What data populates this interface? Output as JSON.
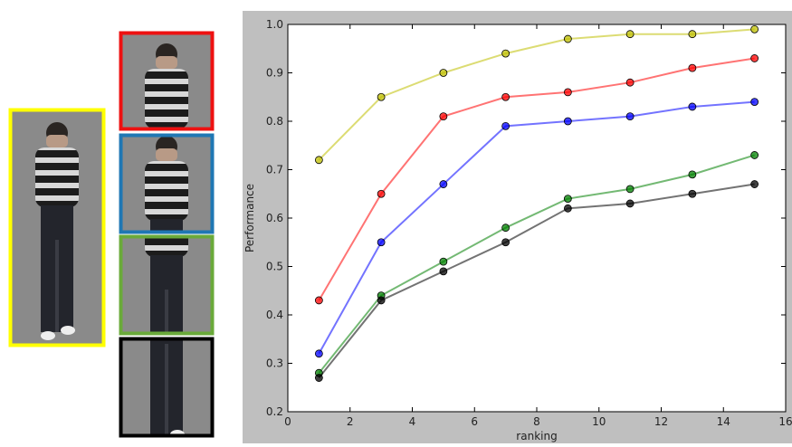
{
  "chart_data": {
    "type": "line",
    "xlabel": "ranking",
    "ylabel": "Performance",
    "x": [
      1,
      3,
      5,
      7,
      9,
      11,
      13,
      15
    ],
    "series": [
      {
        "color": "#bfbf00",
        "values": [
          0.72,
          0.85,
          0.9,
          0.94,
          0.97,
          0.98,
          0.98,
          0.99
        ]
      },
      {
        "color": "#ff0000",
        "values": [
          0.43,
          0.65,
          0.81,
          0.85,
          0.86,
          0.88,
          0.91,
          0.93
        ]
      },
      {
        "color": "#0000ff",
        "values": [
          0.32,
          0.55,
          0.67,
          0.79,
          0.8,
          0.81,
          0.83,
          0.84
        ]
      },
      {
        "color": "#008000",
        "values": [
          0.28,
          0.44,
          0.51,
          0.58,
          0.64,
          0.66,
          0.69,
          0.73
        ]
      },
      {
        "color": "#000000",
        "values": [
          0.27,
          0.43,
          0.49,
          0.55,
          0.62,
          0.63,
          0.65,
          0.67
        ]
      }
    ],
    "xlim": [
      0,
      16
    ],
    "xticks": [
      0,
      2,
      4,
      6,
      8,
      10,
      12,
      14,
      16
    ],
    "ylim": [
      0.2,
      1.0
    ],
    "yticks": [
      0.2,
      0.3,
      0.4,
      0.5,
      0.6,
      0.7,
      0.8,
      0.9,
      {
        "value": 1.0,
        "label": "1.0"
      }
    ]
  }
}
